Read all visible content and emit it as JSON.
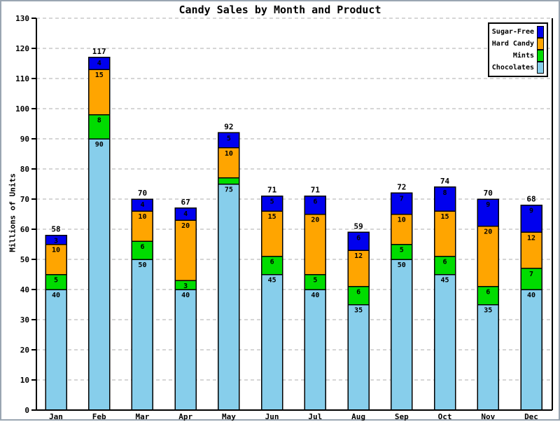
{
  "chart_data": {
    "type": "bar",
    "stacked": true,
    "title": "Candy Sales by Month and Product",
    "ylabel": "Millions of Units",
    "xlabel": "",
    "ylim": [
      0,
      130
    ],
    "yticks": [
      0,
      10,
      20,
      30,
      40,
      50,
      60,
      70,
      80,
      90,
      100,
      110,
      120,
      130
    ],
    "grid": true,
    "legend_position": "top-right",
    "legend_order": [
      "Sugar-Free",
      "Hard Candy",
      "Mints",
      "Chocolates"
    ],
    "categories": [
      "Jan",
      "Feb",
      "Mar",
      "Apr",
      "May",
      "Jun",
      "Jul",
      "Aug",
      "Sep",
      "Oct",
      "Nov",
      "Dec"
    ],
    "series": [
      {
        "name": "Chocolates",
        "color": "#87CEEB",
        "values": [
          40,
          90,
          50,
          40,
          75,
          45,
          40,
          35,
          50,
          45,
          35,
          40
        ]
      },
      {
        "name": "Mints",
        "color": "#00DC00",
        "values": [
          5,
          8,
          6,
          3,
          2,
          6,
          5,
          6,
          5,
          6,
          6,
          7
        ]
      },
      {
        "name": "Hard Candy",
        "color": "#FFA500",
        "values": [
          10,
          15,
          10,
          20,
          10,
          15,
          20,
          12,
          10,
          15,
          20,
          12
        ]
      },
      {
        "name": "Sugar-Free",
        "color": "#0000EE",
        "values": [
          3,
          4,
          4,
          4,
          5,
          5,
          6,
          6,
          7,
          8,
          9,
          9
        ]
      }
    ],
    "totals": [
      58,
      117,
      70,
      67,
      92,
      71,
      71,
      59,
      72,
      74,
      70,
      68
    ]
  }
}
